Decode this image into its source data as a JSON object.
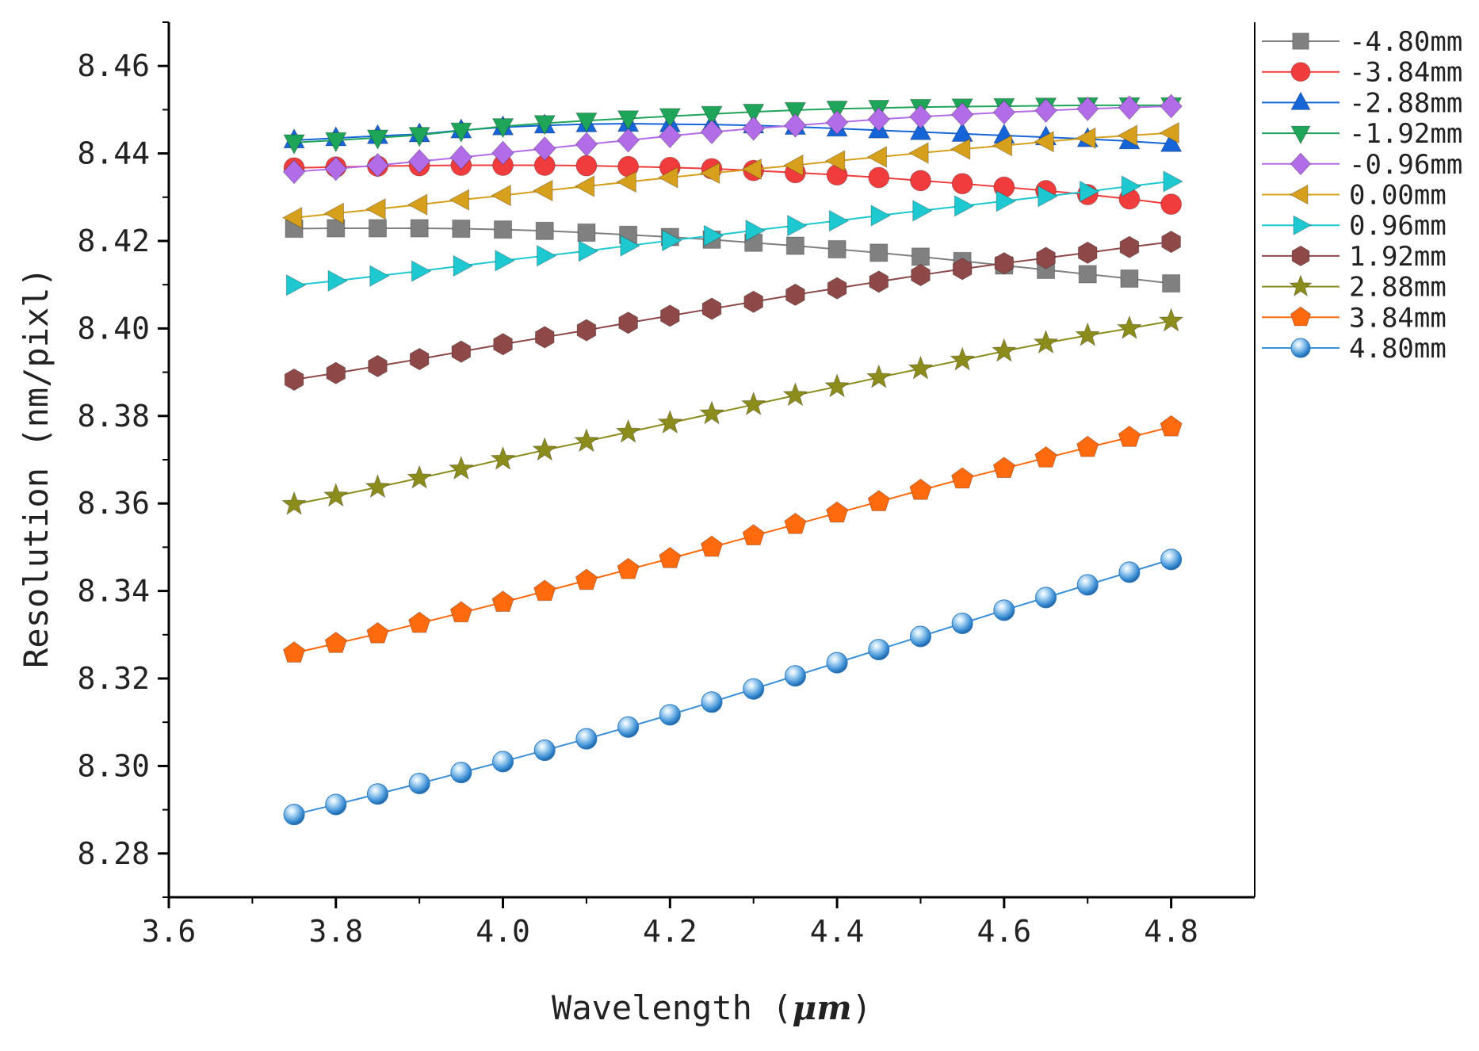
{
  "chart_data": {
    "type": "line",
    "title": "",
    "xlabel": "Wavelength (",
    "xlabel_unit": "μm",
    "xlabel_close": ")",
    "ylabel": "Resolution (nm/pixl)",
    "xlim": [
      3.6,
      4.9
    ],
    "ylim": [
      8.27,
      8.47
    ],
    "x_ticks": [
      3.6,
      3.8,
      4.0,
      4.2,
      4.4,
      4.6,
      4.8
    ],
    "x_tick_labels": [
      "3.6",
      "3.8",
      "4.0",
      "4.2",
      "4.4",
      "4.6",
      "4.8"
    ],
    "y_ticks": [
      8.28,
      8.3,
      8.32,
      8.34,
      8.36,
      8.38,
      8.4,
      8.42,
      8.44,
      8.46
    ],
    "y_tick_labels": [
      "8.28",
      "8.30",
      "8.32",
      "8.34",
      "8.36",
      "8.38",
      "8.40",
      "8.42",
      "8.44",
      "8.46"
    ],
    "legend_position": "right, outside plot",
    "x": [
      3.75,
      3.8,
      3.85,
      3.9,
      3.95,
      4.0,
      4.05,
      4.1,
      4.15,
      4.2,
      4.25,
      4.3,
      4.35,
      4.4,
      4.45,
      4.5,
      4.55,
      4.6,
      4.65,
      4.7,
      4.75,
      4.8
    ],
    "series": [
      {
        "name": "-4.80mm",
        "color": "#808080",
        "marker": "square",
        "values": [
          8.4228,
          8.4229,
          8.4229,
          8.4229,
          8.4228,
          8.4226,
          8.4223,
          8.4219,
          8.4214,
          8.4209,
          8.4203,
          8.4196,
          8.4189,
          8.4181,
          8.4173,
          8.4164,
          8.4154,
          8.4144,
          8.4134,
          8.4124,
          8.4114,
          8.4103
        ]
      },
      {
        "name": "-3.84mm",
        "color": "#f03c3c",
        "marker": "circle",
        "values": [
          8.4367,
          8.4369,
          8.4371,
          8.4372,
          8.4373,
          8.4373,
          8.4373,
          8.4372,
          8.437,
          8.4368,
          8.4365,
          8.4361,
          8.4356,
          8.4351,
          8.4345,
          8.4338,
          8.4331,
          8.4323,
          8.4315,
          8.4306,
          8.4296,
          8.4284
        ]
      },
      {
        "name": "-2.88mm",
        "color": "#1565d8",
        "marker": "triangle-up",
        "values": [
          8.443,
          8.4435,
          8.444,
          8.4444,
          8.4453,
          8.446,
          8.4464,
          8.4467,
          8.4468,
          8.4467,
          8.4466,
          8.4464,
          8.4461,
          8.4457,
          8.4453,
          8.4449,
          8.4445,
          8.4441,
          8.4437,
          8.4433,
          8.4428,
          8.4422
        ]
      },
      {
        "name": "-1.92mm",
        "color": "#1fa55a",
        "marker": "triangle-down",
        "values": [
          8.4425,
          8.443,
          8.4436,
          8.4442,
          8.4452,
          8.4462,
          8.4469,
          8.4475,
          8.448,
          8.4485,
          8.449,
          8.4495,
          8.4499,
          8.4502,
          8.4504,
          8.4506,
          8.4507,
          8.4508,
          8.4509,
          8.451,
          8.451,
          8.451
        ]
      },
      {
        "name": "-0.96mm",
        "color": "#b26ce8",
        "marker": "diamond",
        "values": [
          8.4358,
          8.4365,
          8.4373,
          8.4382,
          8.4391,
          8.4401,
          8.4411,
          8.4421,
          8.443,
          8.444,
          8.4449,
          8.4457,
          8.4464,
          8.4471,
          8.4478,
          8.4484,
          8.4489,
          8.4494,
          8.4498,
          8.4502,
          8.4505,
          8.4508
        ]
      },
      {
        "name": "0.00mm",
        "color": "#d6a01c",
        "marker": "triangle-left",
        "values": [
          8.4253,
          8.4263,
          8.4273,
          8.4283,
          8.4294,
          8.4304,
          8.4315,
          8.4325,
          8.4335,
          8.4345,
          8.4355,
          8.4364,
          8.4373,
          8.4383,
          8.4392,
          8.4401,
          8.441,
          8.4418,
          8.4427,
          8.4435,
          8.4441,
          8.4447
        ]
      },
      {
        "name": "0.96mm",
        "color": "#1ec8d0",
        "marker": "triangle-right",
        "values": [
          8.4099,
          8.4109,
          8.412,
          8.4131,
          8.4143,
          8.4155,
          8.4166,
          8.4177,
          8.4189,
          8.4201,
          8.4212,
          8.4224,
          8.4235,
          8.4246,
          8.4258,
          8.4269,
          8.428,
          8.4291,
          8.4302,
          8.4313,
          8.4325,
          8.4336
        ]
      },
      {
        "name": "1.92mm",
        "color": "#8e4848",
        "marker": "hexagon",
        "values": [
          8.3883,
          8.3898,
          8.3914,
          8.393,
          8.3947,
          8.3964,
          8.398,
          8.3996,
          8.4013,
          8.4029,
          8.4045,
          8.4061,
          8.4077,
          8.4092,
          8.4107,
          8.4122,
          8.4136,
          8.4149,
          8.4161,
          8.4173,
          8.4186,
          8.4198
        ]
      },
      {
        "name": "2.88mm",
        "color": "#8c8c1c",
        "marker": "star",
        "values": [
          8.3598,
          8.3617,
          8.3637,
          8.3658,
          8.3679,
          8.3701,
          8.3722,
          8.3742,
          8.3763,
          8.3784,
          8.3805,
          8.3826,
          8.3847,
          8.3867,
          8.3888,
          8.3908,
          8.3928,
          8.3948,
          8.3967,
          8.3984,
          8.4,
          8.4017
        ]
      },
      {
        "name": "3.84mm",
        "color": "#ff6a0e",
        "marker": "pentagon",
        "values": [
          8.3258,
          8.328,
          8.3302,
          8.3326,
          8.335,
          8.3374,
          8.3399,
          8.3424,
          8.3449,
          8.3474,
          8.35,
          8.3526,
          8.3552,
          8.3578,
          8.3604,
          8.363,
          8.3656,
          8.368,
          8.3704,
          8.3728,
          8.3751,
          8.3775
        ]
      },
      {
        "name": "4.80mm",
        "color": "#3b8fd6",
        "marker": "sphere",
        "values": [
          8.2889,
          8.2912,
          8.2936,
          8.296,
          8.2985,
          8.301,
          8.3036,
          8.3062,
          8.3089,
          8.3117,
          8.3146,
          8.3176,
          8.3206,
          8.3236,
          8.3266,
          8.3296,
          8.3326,
          8.3356,
          8.3385,
          8.3414,
          8.3443,
          8.3472
        ]
      }
    ]
  }
}
